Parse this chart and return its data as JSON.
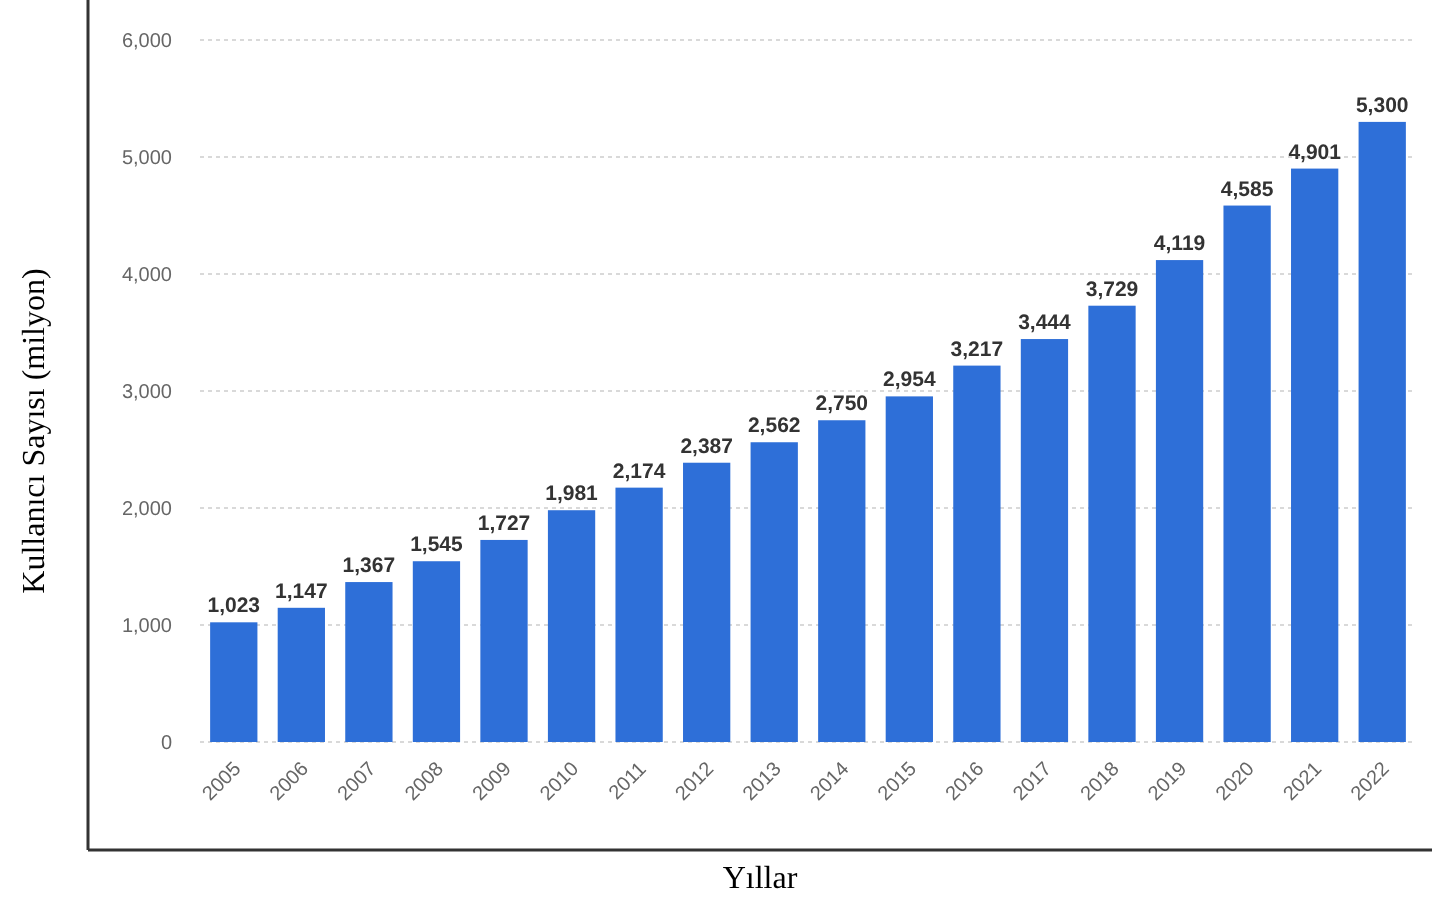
{
  "chart_data": {
    "type": "bar",
    "xlabel": "Yıllar",
    "ylabel": "Kullanıcı Sayısı (milyon)",
    "categories": [
      "2005",
      "2006",
      "2007",
      "2008",
      "2009",
      "2010",
      "2011",
      "2012",
      "2013",
      "2014",
      "2015",
      "2016",
      "2017",
      "2018",
      "2019",
      "2020",
      "2021",
      "2022"
    ],
    "values": [
      1023,
      1147,
      1367,
      1545,
      1727,
      1981,
      2174,
      2387,
      2562,
      2750,
      2954,
      3217,
      3444,
      3729,
      4119,
      4585,
      4901,
      5300
    ],
    "value_labels": [
      "1,023",
      "1,147",
      "1,367",
      "1,545",
      "1,727",
      "1,981",
      "2,174",
      "2,387",
      "2,562",
      "2,750",
      "2,954",
      "3,217",
      "3,444",
      "3,729",
      "4,119",
      "4,585",
      "4,901",
      "5,300"
    ],
    "color": "#2e6fd8",
    "ylim": [
      0,
      6000
    ],
    "yticks": [
      {
        "value": 0,
        "label": "0"
      },
      {
        "value": 1000,
        "label": "1,000"
      },
      {
        "value": 2000,
        "label": "2,000"
      },
      {
        "value": 3000,
        "label": "3,000"
      },
      {
        "value": 4000,
        "label": "4,000"
      },
      {
        "value": 5000,
        "label": "5,000"
      },
      {
        "value": 6000,
        "label": "6,000"
      }
    ],
    "grid": "y"
  }
}
